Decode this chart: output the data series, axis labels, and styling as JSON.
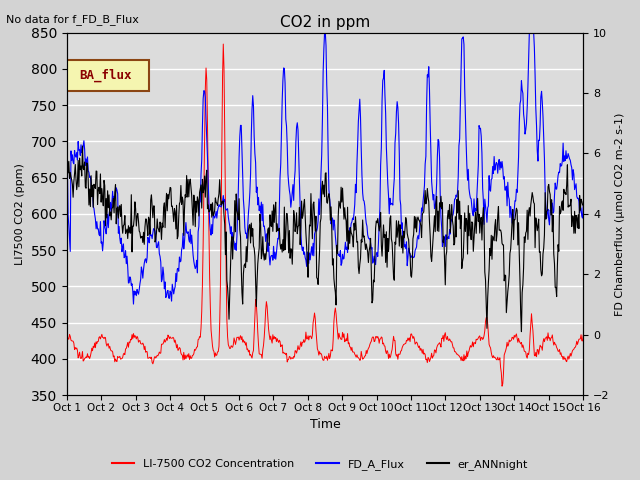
{
  "title": "CO2 in ppm",
  "top_left_text": "No data for f_FD_B_Flux",
  "legend_box_text": "BA_flux",
  "ylabel_left": "LI7500 CO2 (ppm)",
  "ylabel_right": "FD Chamberflux (μmol CO2 m-2 s-1)",
  "xlabel": "Time",
  "ylim_left": [
    350,
    850
  ],
  "ylim_right": [
    -2,
    10
  ],
  "yticks_left": [
    350,
    400,
    450,
    500,
    550,
    600,
    650,
    700,
    750,
    800,
    850
  ],
  "yticks_right": [
    -2,
    0,
    2,
    4,
    6,
    8,
    10
  ],
  "xtick_labels": [
    "Oct 1",
    "Oct 2",
    "Oct 3",
    "Oct 4",
    "Oct 5",
    "Oct 6",
    "Oct 7",
    "Oct 8",
    "Oct 9",
    "Oct 10",
    "Oct 11",
    "Oct 12",
    "Oct 13",
    "Oct 14",
    "Oct 15",
    "Oct 16"
  ],
  "background_color": "#d3d3d3",
  "plot_bg_color": "#e8e8e8",
  "legend_entries": [
    "LI-7500 CO2 Concentration",
    "FD_A_Flux",
    "er_ANNnight"
  ],
  "legend_colors": [
    "#ff0000",
    "#0000ff",
    "#000000"
  ]
}
